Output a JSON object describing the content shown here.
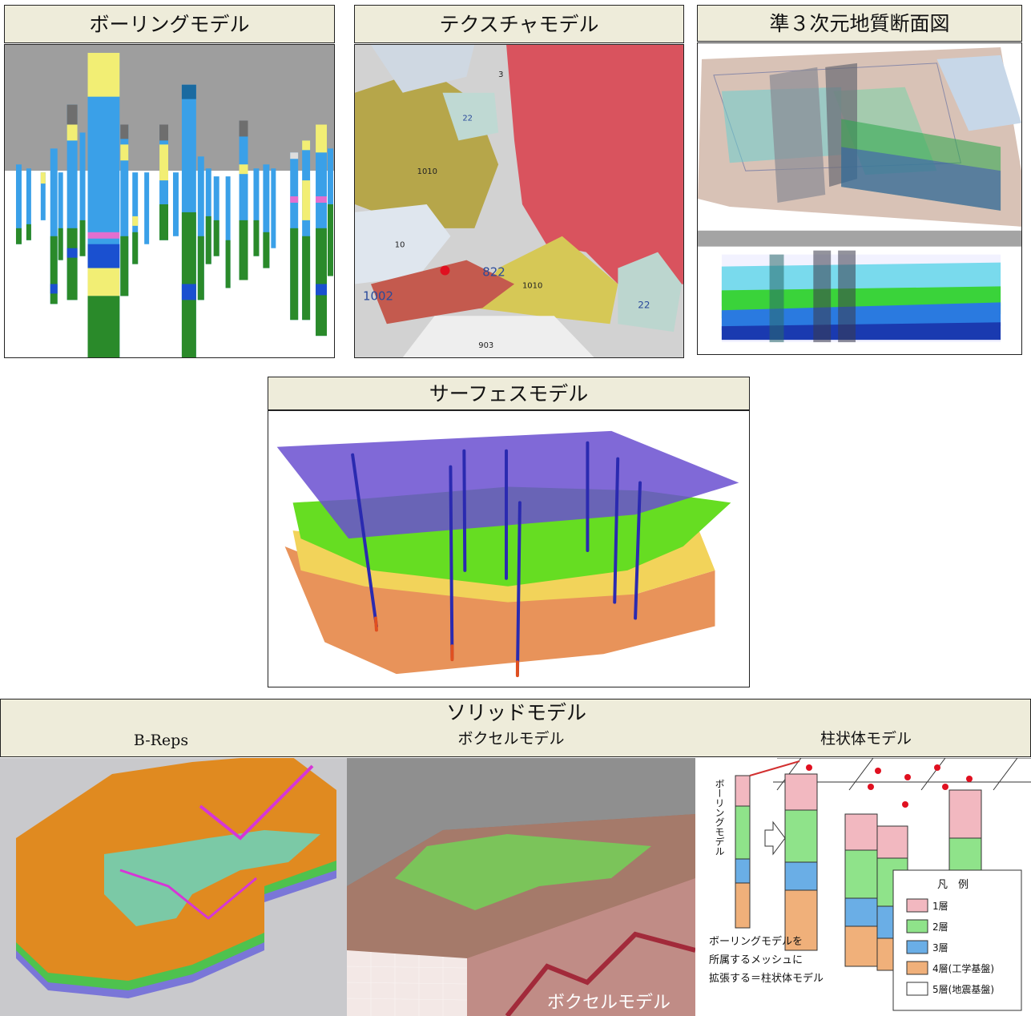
{
  "panels": {
    "boring": {
      "title": "ボーリングモデル"
    },
    "texture": {
      "title": "テクスチャモデル",
      "labels": [
        "3",
        "22",
        "1010",
        "10",
        "822",
        "1010",
        "22",
        "1002",
        "903"
      ]
    },
    "quasi3d": {
      "title": "準３次元地質断面図"
    },
    "surface": {
      "title": "サーフェスモデル"
    },
    "solid": {
      "title": "ソリッドモデル",
      "breps": "B-Reps",
      "voxel": "ボクセルモデル",
      "column": "柱状体モデル",
      "voxel_caption": "ボクセルモデル"
    },
    "column_diagram": {
      "boring_label": "ボーリングモデル",
      "caption_lines": [
        "ボーリングモデルを",
        "所属するメッシュに",
        "拡張する＝柱状体モデル"
      ],
      "legend_title": "凡　例",
      "legend": [
        {
          "label": "1層",
          "color": "#f2b8c0"
        },
        {
          "label": "2層",
          "color": "#8fe38a"
        },
        {
          "label": "3層",
          "color": "#6aaee6"
        },
        {
          "label": "4層(工学基盤)",
          "color": "#f0b07a"
        },
        {
          "label": "5層(地震基盤)",
          "color": "#ffffff"
        }
      ]
    }
  },
  "colors": {
    "header_bg": "#eeecda",
    "layer_yellow": "#f2ee74",
    "layer_blue": "#3aa0e8",
    "layer_green": "#2a8a2a",
    "layer_pink": "#e36fcf",
    "texture_red": "#d9535e",
    "surface_purple": "#6a4fd0",
    "surface_green": "#66dd22",
    "surface_orange": "#e8935a"
  }
}
